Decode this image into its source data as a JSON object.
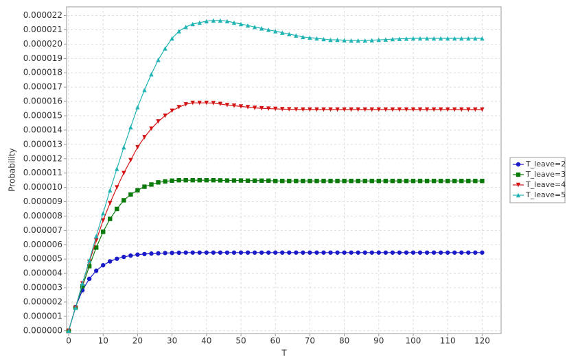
{
  "chart_data": {
    "type": "line",
    "x_label": "T",
    "y_label": "Probability",
    "x": [
      0,
      2,
      4,
      6,
      8,
      10,
      12,
      14,
      16,
      18,
      20,
      22,
      24,
      26,
      28,
      30,
      32,
      34,
      36,
      38,
      40,
      42,
      44,
      46,
      48,
      50,
      52,
      54,
      56,
      58,
      60,
      62,
      64,
      66,
      68,
      70,
      72,
      74,
      76,
      78,
      80,
      82,
      84,
      86,
      88,
      90,
      92,
      94,
      96,
      98,
      100,
      102,
      104,
      106,
      108,
      110,
      112,
      114,
      116,
      118,
      120
    ],
    "series": [
      {
        "name": "T_leave=2",
        "color": "#1a1ac8",
        "marker": "circle",
        "values": [
          0,
          1.66e-06,
          2.82e-06,
          3.62e-06,
          4.18e-06,
          4.57e-06,
          4.84e-06,
          5.02e-06,
          5.15e-06,
          5.24e-06,
          5.31e-06,
          5.35e-06,
          5.38e-06,
          5.4e-06,
          5.42e-06,
          5.43e-06,
          5.44e-06,
          5.45e-06,
          5.45e-06,
          5.45e-06,
          5.45e-06,
          5.45e-06,
          5.45e-06,
          5.45e-06,
          5.45e-06,
          5.45e-06,
          5.45e-06,
          5.45e-06,
          5.45e-06,
          5.45e-06,
          5.45e-06,
          5.45e-06,
          5.45e-06,
          5.45e-06,
          5.45e-06,
          5.45e-06,
          5.45e-06,
          5.45e-06,
          5.45e-06,
          5.45e-06,
          5.45e-06,
          5.45e-06,
          5.45e-06,
          5.45e-06,
          5.45e-06,
          5.45e-06,
          5.45e-06,
          5.45e-06,
          5.45e-06,
          5.45e-06,
          5.45e-06,
          5.45e-06,
          5.45e-06,
          5.45e-06,
          5.45e-06,
          5.45e-06,
          5.45e-06,
          5.45e-06,
          5.45e-06,
          5.45e-06,
          5.45e-06
        ]
      },
      {
        "name": "T_leave=3",
        "color": "#0a7a0a",
        "marker": "square",
        "values": [
          0,
          1.6e-06,
          3.1e-06,
          4.5e-06,
          5.8e-06,
          6.9e-06,
          7.8e-06,
          8.5e-06,
          9.1e-06,
          9.5e-06,
          9.8e-06,
          1.005e-05,
          1.02e-05,
          1.035e-05,
          1.042e-05,
          1.047e-05,
          1.05e-05,
          1.05e-05,
          1.05e-05,
          1.05e-05,
          1.05e-05,
          1.05e-05,
          1.049e-05,
          1.048e-05,
          1.048e-05,
          1.048e-05,
          1.047e-05,
          1.047e-05,
          1.047e-05,
          1.047e-05,
          1.045e-05,
          1.045e-05,
          1.045e-05,
          1.045e-05,
          1.045e-05,
          1.045e-05,
          1.045e-05,
          1.045e-05,
          1.045e-05,
          1.045e-05,
          1.045e-05,
          1.045e-05,
          1.045e-05,
          1.045e-05,
          1.045e-05,
          1.045e-05,
          1.045e-05,
          1.045e-05,
          1.045e-05,
          1.045e-05,
          1.045e-05,
          1.045e-05,
          1.045e-05,
          1.045e-05,
          1.045e-05,
          1.045e-05,
          1.045e-05,
          1.045e-05,
          1.045e-05,
          1.045e-05,
          1.045e-05
        ]
      },
      {
        "name": "T_leave=4",
        "color": "#d41414",
        "marker": "triangle-down",
        "values": [
          0,
          1.6e-06,
          3.3e-06,
          4.8e-06,
          6.3e-06,
          7.7e-06,
          8.9e-06,
          1e-05,
          1.1e-05,
          1.19e-05,
          1.28e-05,
          1.35e-05,
          1.41e-05,
          1.46e-05,
          1.5e-05,
          1.535e-05,
          1.56e-05,
          1.58e-05,
          1.59e-05,
          1.59e-05,
          1.59e-05,
          1.588e-05,
          1.582e-05,
          1.575e-05,
          1.57e-05,
          1.565e-05,
          1.56e-05,
          1.555e-05,
          1.552e-05,
          1.55e-05,
          1.548e-05,
          1.546e-05,
          1.545e-05,
          1.544e-05,
          1.543e-05,
          1.543e-05,
          1.543e-05,
          1.543e-05,
          1.543e-05,
          1.543e-05,
          1.543e-05,
          1.543e-05,
          1.543e-05,
          1.543e-05,
          1.543e-05,
          1.543e-05,
          1.543e-05,
          1.543e-05,
          1.543e-05,
          1.543e-05,
          1.543e-05,
          1.543e-05,
          1.543e-05,
          1.543e-05,
          1.543e-05,
          1.543e-05,
          1.543e-05,
          1.543e-05,
          1.543e-05,
          1.543e-05,
          1.543e-05
        ]
      },
      {
        "name": "T_leave=5",
        "color": "#1fb3b3",
        "marker": "triangle-up",
        "values": [
          0,
          1.6e-06,
          3.3e-06,
          4.9e-06,
          6.6e-06,
          8.2e-06,
          9.8e-06,
          1.13e-05,
          1.28e-05,
          1.42e-05,
          1.56e-05,
          1.68e-05,
          1.79e-05,
          1.89e-05,
          1.97e-05,
          2.04e-05,
          2.09e-05,
          2.12e-05,
          2.14e-05,
          2.15e-05,
          2.16e-05,
          2.165e-05,
          2.165e-05,
          2.16e-05,
          2.15e-05,
          2.14e-05,
          2.13e-05,
          2.12e-05,
          2.11e-05,
          2.1e-05,
          2.09e-05,
          2.08e-05,
          2.07e-05,
          2.06e-05,
          2.05e-05,
          2.045e-05,
          2.04e-05,
          2.035e-05,
          2.03e-05,
          2.03e-05,
          2.027e-05,
          2.025e-05,
          2.025e-05,
          2.025e-05,
          2.027e-05,
          2.03e-05,
          2.032e-05,
          2.035e-05,
          2.037e-05,
          2.038e-05,
          2.04e-05,
          2.04e-05,
          2.04e-05,
          2.04e-05,
          2.04e-05,
          2.04e-05,
          2.04e-05,
          2.04e-05,
          2.04e-05,
          2.04e-05,
          2.04e-05
        ]
      }
    ],
    "xlim": [
      -0.6,
      125.5
    ],
    "xticks": [
      0,
      10,
      20,
      30,
      40,
      50,
      60,
      70,
      80,
      90,
      100,
      110,
      120
    ],
    "ylim": [
      -2e-07,
      2.26e-05
    ],
    "yticks": [
      {
        "value": 0,
        "label": "0.000000"
      },
      {
        "value": 1e-06,
        "label": "0.000001"
      },
      {
        "value": 2e-06,
        "label": "0.000002"
      },
      {
        "value": 3e-06,
        "label": "0.000003"
      },
      {
        "value": 4e-06,
        "label": "0.000004"
      },
      {
        "value": 5e-06,
        "label": "0.000005"
      },
      {
        "value": 6e-06,
        "label": "0.000006"
      },
      {
        "value": 7e-06,
        "label": "0.000007"
      },
      {
        "value": 8e-06,
        "label": "0.000008"
      },
      {
        "value": 9e-06,
        "label": "0.000009"
      },
      {
        "value": 1e-05,
        "label": "0.000010"
      },
      {
        "value": 1.1e-05,
        "label": "0.000011"
      },
      {
        "value": 1.2e-05,
        "label": "0.000012"
      },
      {
        "value": 1.3e-05,
        "label": "0.000013"
      },
      {
        "value": 1.4e-05,
        "label": "0.000014"
      },
      {
        "value": 1.5e-05,
        "label": "0.000015"
      },
      {
        "value": 1.6e-05,
        "label": "0.000016"
      },
      {
        "value": 1.7e-05,
        "label": "0.000017"
      },
      {
        "value": 1.8e-05,
        "label": "0.000018"
      },
      {
        "value": 1.9e-05,
        "label": "0.000019"
      },
      {
        "value": 2e-05,
        "label": "0.000020"
      },
      {
        "value": 2.1e-05,
        "label": "0.000021"
      },
      {
        "value": 2.2e-05,
        "label": "0.000022"
      }
    ],
    "grid": true,
    "legend": "right"
  }
}
